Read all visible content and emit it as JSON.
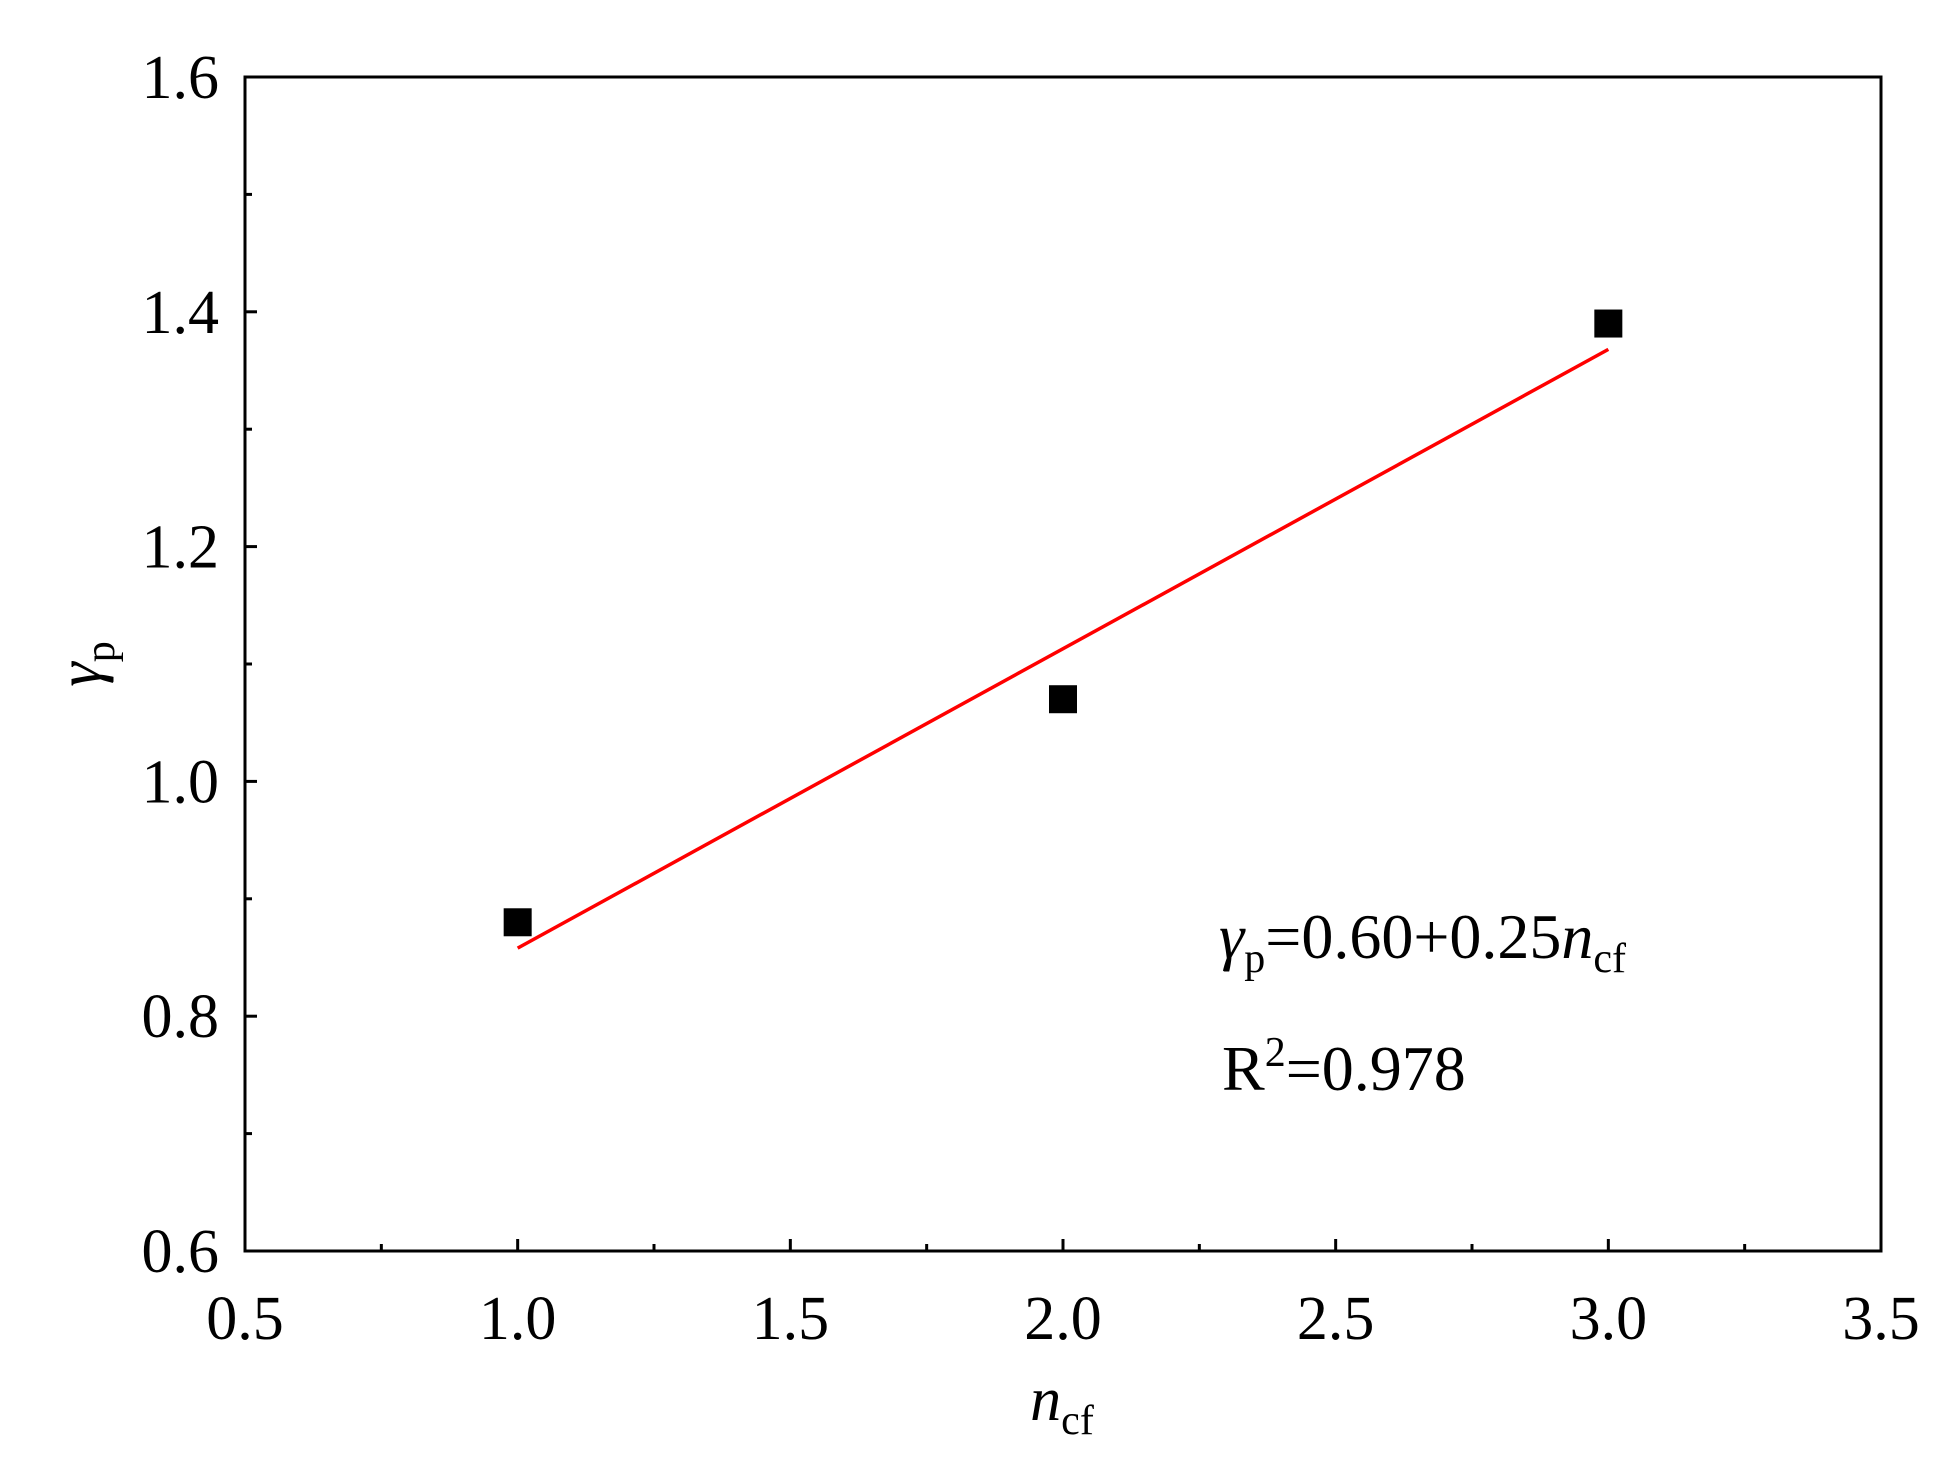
{
  "chart_data": {
    "type": "scatter",
    "x_label": {
      "base": "n",
      "subscript": "cf"
    },
    "y_label": {
      "base": "γ",
      "subscript": "p"
    },
    "xlim": [
      0.5,
      3.5
    ],
    "xticks": [
      {
        "value": 0.5,
        "label": "0.5"
      },
      {
        "value": 1.0,
        "label": "1.0"
      },
      {
        "value": 1.5,
        "label": "1.5"
      },
      {
        "value": 2.0,
        "label": "2.0"
      },
      {
        "value": 2.5,
        "label": "2.5"
      },
      {
        "value": 3.0,
        "label": "3.0"
      },
      {
        "value": 3.5,
        "label": "3.5"
      }
    ],
    "xminorticks": [
      0.75,
      1.25,
      1.75,
      2.25,
      2.75,
      3.25
    ],
    "ylim": [
      0.6,
      1.6
    ],
    "yticks": [
      {
        "value": 0.6,
        "label": "0.6"
      },
      {
        "value": 0.8,
        "label": "0.8"
      },
      {
        "value": 1.0,
        "label": "1.0"
      },
      {
        "value": 1.2,
        "label": "1.2"
      },
      {
        "value": 1.4,
        "label": "1.4"
      },
      {
        "value": 1.6,
        "label": "1.6"
      }
    ],
    "yminorticks": [
      0.7,
      0.9,
      1.1,
      1.3,
      1.5
    ],
    "series": [
      {
        "type": "scatter",
        "color": "#000000",
        "x": [
          1,
          2,
          3
        ],
        "values": [
          0.88,
          1.07,
          1.39
        ]
      },
      {
        "type": "line",
        "color": "#ff0000",
        "x": [
          1,
          3
        ],
        "values": [
          0.858,
          1.368
        ]
      }
    ],
    "annotations": [
      [
        {
          "text": "γ",
          "style": "italic"
        },
        {
          "text": "p",
          "style": "sub"
        },
        {
          "text": "=0.60+0.25",
          "style": "normal"
        },
        {
          "text": "n",
          "style": "italic"
        },
        {
          "text": "cf",
          "style": "sub"
        }
      ],
      [
        {
          "text": "R",
          "style": "normal"
        },
        {
          "text": "2",
          "style": "sup"
        },
        {
          "text": "=0.978",
          "style": "normal"
        }
      ]
    ]
  }
}
